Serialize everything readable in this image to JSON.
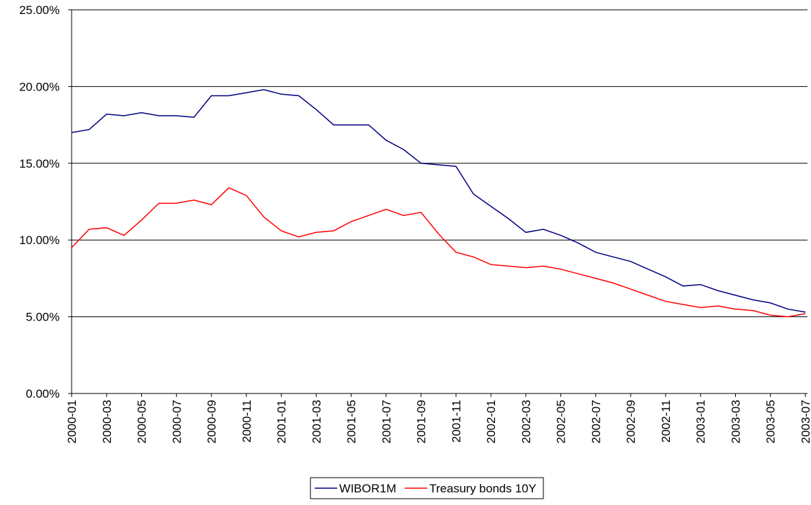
{
  "chart_data": {
    "type": "line",
    "categories": [
      "2000-01",
      null,
      "2000-03",
      null,
      "2000-05",
      null,
      "2000-07",
      null,
      "2000-09",
      null,
      "2000-11",
      null,
      "2001-01",
      null,
      "2001-03",
      null,
      "2001-05",
      null,
      "2001-07",
      null,
      "2001-09",
      null,
      "2001-11",
      null,
      "2002-01",
      null,
      "2002-03",
      null,
      "2002-05",
      null,
      "2002-07",
      null,
      "2002-09",
      null,
      "2002-11",
      null,
      "2003-01",
      null,
      "2003-03",
      null,
      "2003-05",
      null,
      "2003-07"
    ],
    "series": [
      {
        "name": "WIBOR1M",
        "color": "#000080",
        "values": [
          17.0,
          17.2,
          18.2,
          18.1,
          18.3,
          18.1,
          18.1,
          18.0,
          19.4,
          19.4,
          19.6,
          19.8,
          19.5,
          19.4,
          18.5,
          17.5,
          17.5,
          17.5,
          16.5,
          15.9,
          15.0,
          14.9,
          14.8,
          13.0,
          12.2,
          11.4,
          10.5,
          10.7,
          10.3,
          9.8,
          9.2,
          8.9,
          8.6,
          8.1,
          7.6,
          7.0,
          7.1,
          6.7,
          6.4,
          6.1,
          5.9,
          5.5,
          5.3
        ]
      },
      {
        "name": "Treasury bonds 10Y",
        "color": "#ff0000",
        "values": [
          9.5,
          10.7,
          10.8,
          10.3,
          11.3,
          12.4,
          12.4,
          12.6,
          12.3,
          13.4,
          12.9,
          11.5,
          10.6,
          10.2,
          10.5,
          10.6,
          11.2,
          11.6,
          12.0,
          11.6,
          11.8,
          10.4,
          9.2,
          8.9,
          8.4,
          8.3,
          8.2,
          8.3,
          8.1,
          7.8,
          7.5,
          7.2,
          6.8,
          6.4,
          6.0,
          5.8,
          5.6,
          5.7,
          5.5,
          5.4,
          5.1,
          5.0,
          5.2
        ]
      }
    ],
    "ylim": [
      0,
      25
    ],
    "yticks": [
      {
        "value": 0,
        "label": "0.00%"
      },
      {
        "value": 5,
        "label": "5.00%"
      },
      {
        "value": 10,
        "label": "10.00%"
      },
      {
        "value": 15,
        "label": "15.00%"
      },
      {
        "value": 20,
        "label": "20.00%"
      },
      {
        "value": 25,
        "label": "25.00%"
      }
    ],
    "grid": true,
    "legend": "bottom"
  }
}
